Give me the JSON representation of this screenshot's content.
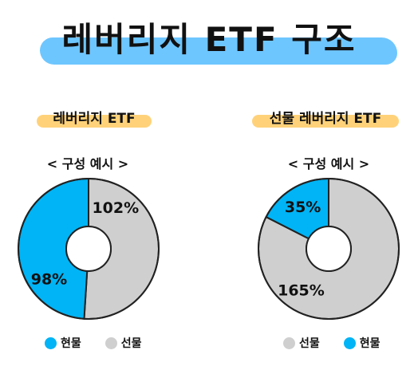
{
  "title": "레버리지 ETF 구조",
  "colors": {
    "spot": "#00b4f5",
    "futures": "#cfcfcf",
    "outline": "#222222",
    "title_highlight": "#6ec6ff",
    "subtitle_highlight": "#ffd27a"
  },
  "panels": [
    {
      "subtitle": "레버리지 ETF",
      "caption": "< 구성 예시 >",
      "legend": [
        {
          "label": "현물",
          "color": "#00b4f5"
        },
        {
          "label": "선물",
          "color": "#cfcfcf"
        }
      ]
    },
    {
      "subtitle": "선물 레버리지 ETF",
      "caption": "< 구성 예시 >",
      "legend": [
        {
          "label": "선물",
          "color": "#cfcfcf"
        },
        {
          "label": "현물",
          "color": "#00b4f5"
        }
      ]
    }
  ],
  "chart_data": [
    {
      "type": "pie",
      "title": "레버리지 ETF",
      "slices": [
        {
          "name": "현물",
          "value": 98,
          "label": "98%",
          "color": "#00b4f5"
        },
        {
          "name": "선물",
          "value": 102,
          "label": "102%",
          "color": "#cfcfcf"
        }
      ]
    },
    {
      "type": "pie",
      "title": "선물 레버리지 ETF",
      "slices": [
        {
          "name": "현물",
          "value": 35,
          "label": "35%",
          "color": "#00b4f5"
        },
        {
          "name": "선물",
          "value": 165,
          "label": "165%",
          "color": "#cfcfcf"
        }
      ]
    }
  ]
}
